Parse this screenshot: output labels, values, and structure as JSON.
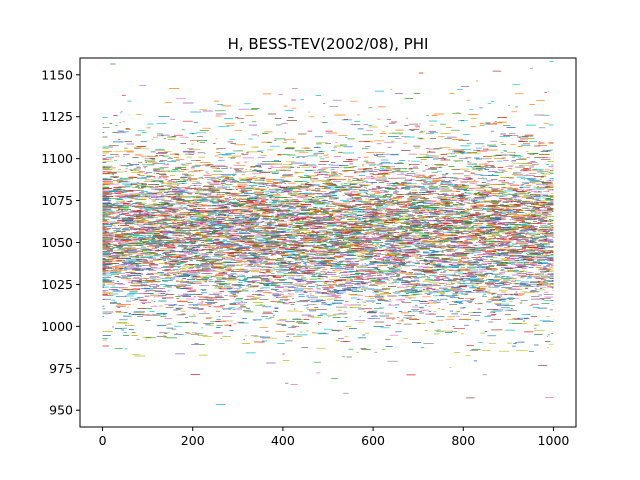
{
  "chart_data": {
    "type": "line",
    "title": "H, BESS-TEV(2002/08), PHI",
    "xlabel": "",
    "ylabel": "",
    "xlim": [
      -50,
      1050
    ],
    "ylim": [
      940,
      1160
    ],
    "xticks": [
      "0",
      "200",
      "400",
      "600",
      "800",
      "1000"
    ],
    "yticks": [
      "950",
      "975",
      "1000",
      "1025",
      "1050",
      "1075",
      "1100",
      "1125",
      "1150"
    ],
    "grid": false,
    "legend": "none",
    "series_count_estimate": 300,
    "samples_per_series_estimate": 1001,
    "x_range": [
      0,
      1000
    ],
    "value_center": 1055,
    "value_typical_range": [
      1000,
      1110
    ],
    "value_extremes": [
      950,
      1152
    ],
    "colors": [
      "#1f77b4",
      "#ff7f0e",
      "#2ca02c",
      "#d62728",
      "#9467bd",
      "#8c564b",
      "#e377c2",
      "#7f7f7f",
      "#bcbd22",
      "#17becf"
    ]
  }
}
